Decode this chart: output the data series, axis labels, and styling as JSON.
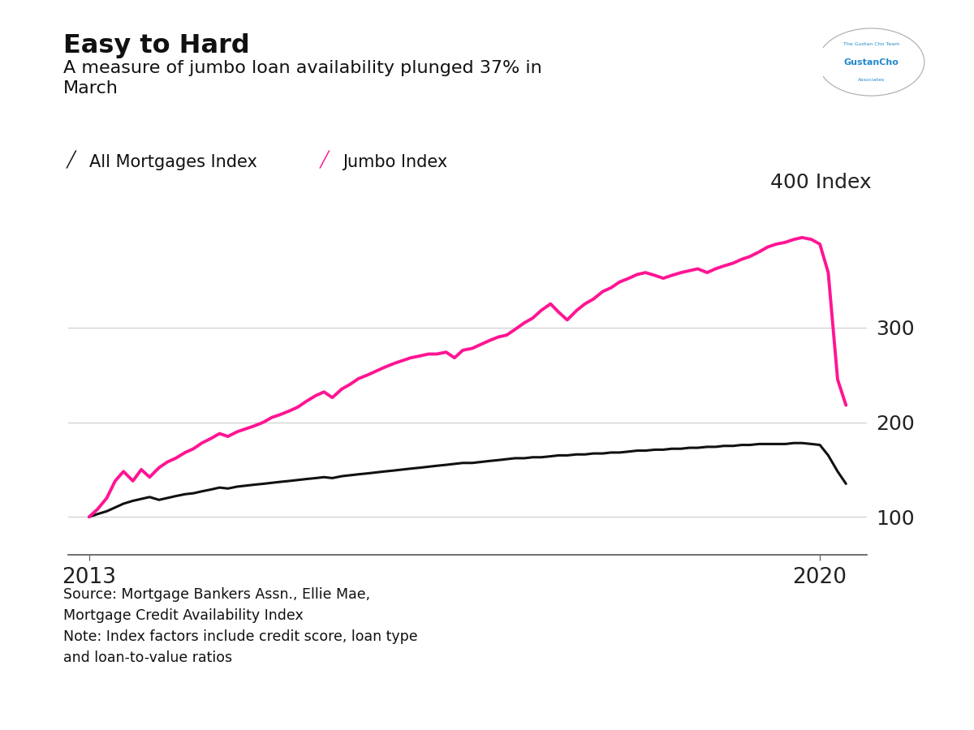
{
  "title": "Easy to Hard",
  "subtitle": "A measure of jumbo loan availability plunged 37% in\nMarch",
  "source_text": "Source: Mortgage Bankers Assn., Ellie Mae,\nMortgage Credit Availability Index\nNote: Index factors include credit score, loan type\nand loan-to-value ratios",
  "ylabel": "400 Index",
  "legend_labels": [
    "All Mortgages Index",
    "Jumbo Index"
  ],
  "legend_colors": [
    "#111111",
    "#FF1493"
  ],
  "background_color": "#ffffff",
  "x_tick_labels": [
    "2013",
    "2020"
  ],
  "y_tick_values": [
    100,
    200,
    300
  ],
  "ylim": [
    60,
    430
  ],
  "all_mortgages_x": [
    2013.0,
    2013.08,
    2013.17,
    2013.25,
    2013.33,
    2013.42,
    2013.5,
    2013.58,
    2013.67,
    2013.75,
    2013.83,
    2013.92,
    2014.0,
    2014.08,
    2014.17,
    2014.25,
    2014.33,
    2014.42,
    2014.5,
    2014.58,
    2014.67,
    2014.75,
    2014.83,
    2014.92,
    2015.0,
    2015.08,
    2015.17,
    2015.25,
    2015.33,
    2015.42,
    2015.5,
    2015.58,
    2015.67,
    2015.75,
    2015.83,
    2015.92,
    2016.0,
    2016.08,
    2016.17,
    2016.25,
    2016.33,
    2016.42,
    2016.5,
    2016.58,
    2016.67,
    2016.75,
    2016.83,
    2016.92,
    2017.0,
    2017.08,
    2017.17,
    2017.25,
    2017.33,
    2017.42,
    2017.5,
    2017.58,
    2017.67,
    2017.75,
    2017.83,
    2017.92,
    2018.0,
    2018.08,
    2018.17,
    2018.25,
    2018.33,
    2018.42,
    2018.5,
    2018.58,
    2018.67,
    2018.75,
    2018.83,
    2018.92,
    2019.0,
    2019.08,
    2019.17,
    2019.25,
    2019.33,
    2019.42,
    2019.5,
    2019.58,
    2019.67,
    2019.75,
    2019.83,
    2019.92,
    2020.0,
    2020.08,
    2020.17,
    2020.25
  ],
  "all_mortgages_y": [
    100,
    103,
    106,
    110,
    114,
    117,
    119,
    121,
    118,
    120,
    122,
    124,
    125,
    127,
    129,
    131,
    130,
    132,
    133,
    134,
    135,
    136,
    137,
    138,
    139,
    140,
    141,
    142,
    141,
    143,
    144,
    145,
    146,
    147,
    148,
    149,
    150,
    151,
    152,
    153,
    154,
    155,
    156,
    157,
    157,
    158,
    159,
    160,
    161,
    162,
    162,
    163,
    163,
    164,
    165,
    165,
    166,
    166,
    167,
    167,
    168,
    168,
    169,
    170,
    170,
    171,
    171,
    172,
    172,
    173,
    173,
    174,
    174,
    175,
    175,
    176,
    176,
    177,
    177,
    177,
    177,
    178,
    178,
    177,
    176,
    165,
    148,
    135
  ],
  "jumbo_x": [
    2013.0,
    2013.08,
    2013.17,
    2013.25,
    2013.33,
    2013.42,
    2013.5,
    2013.58,
    2013.67,
    2013.75,
    2013.83,
    2013.92,
    2014.0,
    2014.08,
    2014.17,
    2014.25,
    2014.33,
    2014.42,
    2014.5,
    2014.58,
    2014.67,
    2014.75,
    2014.83,
    2014.92,
    2015.0,
    2015.08,
    2015.17,
    2015.25,
    2015.33,
    2015.42,
    2015.5,
    2015.58,
    2015.67,
    2015.75,
    2015.83,
    2015.92,
    2016.0,
    2016.08,
    2016.17,
    2016.25,
    2016.33,
    2016.42,
    2016.5,
    2016.58,
    2016.67,
    2016.75,
    2016.83,
    2016.92,
    2017.0,
    2017.08,
    2017.17,
    2017.25,
    2017.33,
    2017.42,
    2017.5,
    2017.58,
    2017.67,
    2017.75,
    2017.83,
    2017.92,
    2018.0,
    2018.08,
    2018.17,
    2018.25,
    2018.33,
    2018.42,
    2018.5,
    2018.58,
    2018.67,
    2018.75,
    2018.83,
    2018.92,
    2019.0,
    2019.08,
    2019.17,
    2019.25,
    2019.33,
    2019.42,
    2019.5,
    2019.58,
    2019.67,
    2019.75,
    2019.83,
    2019.92,
    2020.0,
    2020.08,
    2020.17,
    2020.25
  ],
  "jumbo_y": [
    100,
    108,
    120,
    138,
    148,
    138,
    150,
    142,
    152,
    158,
    162,
    168,
    172,
    178,
    183,
    188,
    185,
    190,
    193,
    196,
    200,
    205,
    208,
    212,
    216,
    222,
    228,
    232,
    226,
    235,
    240,
    246,
    250,
    254,
    258,
    262,
    265,
    268,
    270,
    272,
    272,
    274,
    268,
    276,
    278,
    282,
    286,
    290,
    292,
    298,
    305,
    310,
    318,
    325,
    316,
    308,
    318,
    325,
    330,
    338,
    342,
    348,
    352,
    356,
    358,
    355,
    352,
    355,
    358,
    360,
    362,
    358,
    362,
    365,
    368,
    372,
    375,
    380,
    385,
    388,
    390,
    393,
    395,
    393,
    388,
    358,
    245,
    218
  ]
}
